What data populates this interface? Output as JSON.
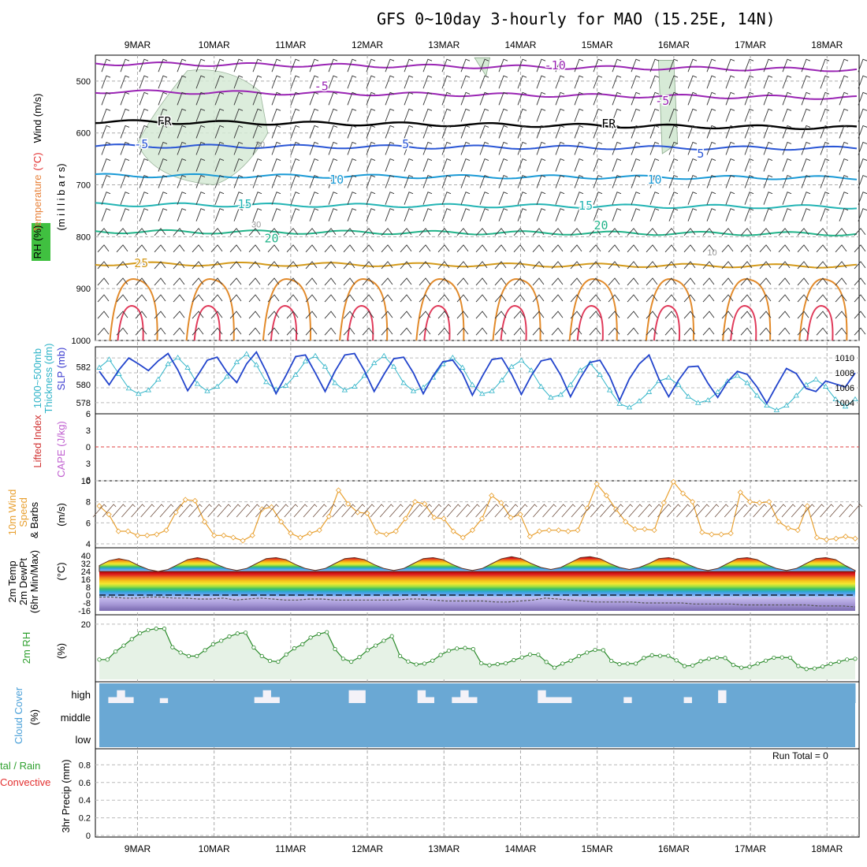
{
  "title": "GFS 0~10day 3-hourly for MAO (15.25E, 14N)",
  "dates": [
    "9MAR",
    "10MAR",
    "11MAR",
    "12MAR",
    "13MAR",
    "14MAR",
    "15MAR",
    "16MAR",
    "17MAR",
    "18MAR"
  ],
  "panels": {
    "upper": {
      "labels": [
        {
          "text": "Wind (m/s)",
          "color": "#000000"
        },
        {
          "text": "Temperature",
          "color": "#e8823a"
        },
        {
          "text": "(°C)",
          "color": "#e33030"
        },
        {
          "text": "RH (%)",
          "color": "#000000"
        },
        {
          "text": "(m i l l i b a r s)",
          "color": "#000000"
        }
      ]
    },
    "thickness": {
      "labels": [
        {
          "text": "1000~500mb",
          "color": "#30b4c8"
        },
        {
          "text": "Thickness (dm)",
          "color": "#30b4c8"
        },
        {
          "text": "SLP (mb)",
          "color": "#3a3ad0"
        }
      ]
    },
    "stability": {
      "labels": [
        {
          "text": "Lifted Index",
          "color": "#d03030"
        },
        {
          "text": "CAPE (J/kg)",
          "color": "#c060d0"
        }
      ]
    },
    "wind10m": {
      "labels": [
        {
          "text": "10m Wind",
          "color": "#e8a030"
        },
        {
          "text": "Speed",
          "color": "#e8a030"
        },
        {
          "text": "& Barbs",
          "color": "#000000"
        },
        {
          "text": "(m/s)",
          "color": "#000000"
        }
      ]
    },
    "temp2m": {
      "labels": [
        {
          "text": "2m Temp",
          "color": "#000000"
        },
        {
          "text": "2m DewPt",
          "color": "#000000"
        },
        {
          "text": "(6hr Min/Max)",
          "color": "#000000"
        },
        {
          "text": "(°C)",
          "color": "#000000"
        }
      ]
    },
    "rh2m": {
      "labels": [
        {
          "text": "2m RH",
          "color": "#2ea02e"
        },
        {
          "text": "(%)",
          "color": "#000000"
        }
      ]
    },
    "cloud": {
      "labels": [
        {
          "text": "Cloud Cover",
          "color": "#4aa0d8"
        },
        {
          "text": "(%)",
          "color": "#000000"
        }
      ]
    },
    "precip": {
      "labels": [
        {
          "text": "tal / Rain",
          "color": "#2ea02e"
        },
        {
          "text": "Convective",
          "color": "#e33030"
        },
        {
          "text": "3hr Precip (mm)",
          "color": "#000000"
        }
      ],
      "run_total": "Run Total = 0"
    }
  },
  "chart_data": [
    {
      "type": "line",
      "name": "upper-air cross section",
      "y_axis": {
        "label": "(m i l l i b a r s)",
        "ticks": [
          500,
          600,
          700,
          800,
          900,
          1000
        ],
        "ylim": [
          1000,
          450
        ],
        "reverse": true
      },
      "isotherm_labels": [
        {
          "text": "-10",
          "color": "#9a24b4",
          "day": 5.45,
          "p": 470
        },
        {
          "text": "-5",
          "color": "#9a24b4",
          "day": 2.4,
          "p": 510
        },
        {
          "text": "-5",
          "color": "#9a24b4",
          "day": 6.85,
          "p": 538
        },
        {
          "text": "FR",
          "color": "#000000",
          "day": 0.35,
          "p": 578
        },
        {
          "text": "FR",
          "color": "#000000",
          "day": 6.15,
          "p": 582
        },
        {
          "text": "-5",
          "color": "#2a56d6",
          "day": 0.05,
          "p": 622
        },
        {
          "text": "5",
          "color": "#2a56d6",
          "day": 3.5,
          "p": 622
        },
        {
          "text": "5",
          "color": "#2a56d6",
          "day": 7.35,
          "p": 640
        },
        {
          "text": "10",
          "color": "#1a9ad6",
          "day": 2.6,
          "p": 690
        },
        {
          "text": "10",
          "color": "#1a9ad6",
          "day": 6.75,
          "p": 690
        },
        {
          "text": "15",
          "color": "#22b4b4",
          "day": 1.4,
          "p": 737
        },
        {
          "text": "15",
          "color": "#22b4b4",
          "day": 5.85,
          "p": 740
        },
        {
          "text": "20",
          "color": "#22b48a",
          "day": 1.75,
          "p": 803
        },
        {
          "text": "20",
          "color": "#22b48a",
          "day": 6.05,
          "p": 778
        },
        {
          "text": "25",
          "color": "#d49a1a",
          "day": 0.05,
          "p": 851
        }
      ],
      "rh_labels": [
        {
          "text": "30",
          "day": 1.6,
          "p": 622
        },
        {
          "text": "30",
          "day": 1.55,
          "p": 776
        },
        {
          "text": "10",
          "day": 7.5,
          "p": 830
        }
      ],
      "isotherms": [
        {
          "name": "-10",
          "color": "#9a24b4",
          "p": 466
        },
        {
          "name": "-5",
          "color": "#9a24b4",
          "p": 520
        },
        {
          "name": "FR",
          "color": "#000000",
          "p": 578
        },
        {
          "name": "-5",
          "color": "#2a56d6",
          "p": 625
        },
        {
          "name": "10",
          "color": "#1a9ad6",
          "p": 682
        },
        {
          "name": "15",
          "color": "#22b4b4",
          "p": 738
        },
        {
          "name": "20",
          "color": "#22b48a",
          "p": 790
        },
        {
          "name": "25",
          "color": "#d49a1a",
          "p": 852
        }
      ]
    },
    {
      "type": "line",
      "name": "thickness and SLP",
      "y_left": {
        "label": "Thickness (dm)",
        "ticks": [
          578,
          580,
          582
        ]
      },
      "y_right": {
        "label": "SLP (mb)",
        "ticks": [
          1004,
          1006,
          1008,
          1010
        ]
      },
      "series": [
        {
          "name": "1000~500mb Thickness (dm)",
          "color": "#30b4c8",
          "axis": "left",
          "marker": "triangle",
          "values": [
            581.9,
            582.8,
            581.2,
            579.6,
            579.0,
            579.4,
            580.6,
            582.3,
            583.0,
            581.9,
            580.1,
            579.3,
            579.8,
            580.9,
            582.5,
            583.4,
            582.2,
            580.3,
            579.5,
            579.9,
            581.1,
            582.6,
            583.2,
            582.0,
            580.2,
            579.4,
            579.8,
            581.0,
            582.4,
            583.2,
            582.0,
            580.2,
            579.3,
            579.7,
            580.8,
            582.3,
            583.0,
            581.9,
            580.0,
            579.0,
            579.3,
            580.5,
            582.0,
            582.7,
            581.6,
            579.8,
            578.6,
            578.9,
            580.0,
            581.6,
            582.4,
            581.1,
            579.4,
            577.9,
            577.5,
            578.2,
            579.2,
            580.4,
            580.8,
            580.0,
            578.7,
            578.0,
            578.3,
            579.2,
            580.4,
            581.0,
            580.2,
            578.8,
            577.7,
            577.2,
            577.7,
            578.8,
            580.0,
            580.6,
            579.8,
            578.4,
            577.6,
            578.4
          ]
        },
        {
          "name": "SLP (mb)",
          "color": "#2244cc",
          "axis": "right",
          "marker": "none",
          "values": [
            1008.2,
            1006.4,
            1008.4,
            1010.0,
            1009.2,
            1008.3,
            1009.6,
            1010.6,
            1008.4,
            1005.6,
            1007.6,
            1009.7,
            1010.1,
            1008.1,
            1006.7,
            1009.2,
            1010.8,
            1008.2,
            1005.2,
            1007.6,
            1010.2,
            1010.4,
            1008.0,
            1005.5,
            1008.2,
            1010.4,
            1010.6,
            1008.3,
            1005.5,
            1007.8,
            1009.9,
            1010.1,
            1008.0,
            1005.2,
            1007.6,
            1009.5,
            1009.7,
            1007.9,
            1005.0,
            1007.5,
            1009.8,
            1010.0,
            1007.8,
            1005.1,
            1007.6,
            1009.6,
            1009.9,
            1007.7,
            1004.8,
            1007.3,
            1009.4,
            1009.7,
            1007.5,
            1004.3,
            1007.2,
            1009.2,
            1010.4,
            1007.2,
            1004.8,
            1007.0,
            1008.8,
            1008.9,
            1006.6,
            1004.7,
            1006.8,
            1008.2,
            1007.8,
            1006.1,
            1003.9,
            1006.3,
            1008.6,
            1007.9,
            1005.9,
            1005.5,
            1006.9,
            1006.5,
            1006.1,
            1008.0
          ]
        }
      ]
    },
    {
      "type": "line",
      "name": "lifted index and CAPE",
      "y_left": {
        "label": "Lifted Index",
        "ticks": [
          -6,
          -3,
          0,
          3,
          6
        ]
      },
      "series": [
        {
          "name": "Lifted Index zero line",
          "color": "#e04040",
          "style": "dashed",
          "values": [
            0
          ]
        }
      ]
    },
    {
      "type": "line",
      "name": "10m wind",
      "y_left": {
        "label": "(m/s)",
        "ticks": [
          4,
          6,
          8,
          10
        ],
        "ylim": [
          4,
          10
        ]
      },
      "series": [
        {
          "name": "10m Wind Speed",
          "color": "#e8a030",
          "marker": "diamond",
          "values": [
            7.6,
            6.8,
            5.2,
            5.2,
            4.8,
            4.8,
            4.9,
            5.3,
            7.0,
            8.2,
            8.1,
            6.1,
            4.8,
            4.8,
            4.6,
            4.3,
            4.8,
            7.3,
            7.5,
            6.1,
            5.0,
            4.6,
            5.0,
            5.3,
            6.6,
            9.1,
            7.8,
            7.0,
            6.9,
            5.1,
            4.9,
            5.2,
            6.4,
            8.0,
            7.8,
            6.5,
            6.4,
            5.2,
            4.6,
            5.3,
            6.4,
            8.6,
            7.9,
            6.5,
            6.8,
            4.7,
            5.2,
            5.3,
            5.3,
            5.2,
            5.3,
            7.4,
            9.7,
            8.6,
            7.3,
            6.1,
            5.4,
            5.4,
            5.3,
            7.9,
            9.9,
            8.8,
            8.0,
            5.1,
            4.9,
            4.9,
            5.0,
            8.9,
            8.0,
            7.9,
            8.0,
            6.1,
            5.5,
            5.3,
            7.6,
            4.6,
            4.4,
            4.5,
            4.7,
            4.5
          ]
        }
      ]
    },
    {
      "type": "area",
      "name": "2m temperature and dewpoint",
      "y_left": {
        "label": "(°C)",
        "ticks": [
          40,
          32,
          24,
          16,
          8,
          0,
          -8,
          -16
        ]
      },
      "series": [
        {
          "name": "2m Temp",
          "values": [
            30,
            35,
            37,
            35,
            30,
            26,
            24,
            26,
            31,
            36,
            38,
            36,
            31,
            27,
            25,
            27,
            32,
            37,
            38,
            36,
            31,
            27,
            25,
            27,
            32,
            37,
            38,
            36,
            31,
            27,
            25,
            27,
            32,
            37,
            38,
            36,
            31,
            27,
            25,
            27,
            32,
            37,
            39,
            37,
            32,
            28,
            26,
            28,
            33,
            38,
            39,
            37,
            32,
            28,
            26,
            28,
            32,
            37,
            38,
            36,
            31,
            27,
            25,
            27,
            32,
            37,
            38,
            36,
            31,
            27,
            25,
            27,
            32,
            37,
            38,
            36,
            30,
            25
          ]
        },
        {
          "name": "2m DewPt",
          "values": [
            -2,
            -2,
            -3,
            -3,
            -2,
            -2,
            -3,
            -3,
            -4,
            -4,
            -3,
            -5,
            -4,
            -3,
            -4,
            -5,
            -5,
            -4,
            -4,
            -5,
            -5,
            -5,
            -5,
            -5,
            -5,
            -4,
            -4,
            -5,
            -6,
            -6,
            -6,
            -6,
            -7,
            -7,
            -6,
            -5,
            -3,
            -4,
            -5,
            -6,
            -7,
            -7,
            -7,
            -7,
            -8,
            -8,
            -8,
            -8,
            -9,
            -9,
            -9,
            -9,
            -10,
            -10,
            -10,
            -10,
            -10,
            -10,
            -11,
            -11,
            -11,
            -12
          ]
        }
      ]
    },
    {
      "type": "area",
      "name": "2m RH",
      "y_left": {
        "label": "(%)",
        "ticks": [
          20
        ]
      },
      "series": [
        {
          "name": "2m RH",
          "color": "#2a8a2a",
          "marker": "circle",
          "values": [
            6.8,
            6.8,
            9.8,
            12.0,
            14.4,
            16.6,
            17.8,
            18.3,
            18.3,
            11.4,
            9.4,
            8.1,
            8.1,
            10.3,
            12.5,
            13.8,
            15.4,
            16.5,
            16.8,
            11.3,
            8.1,
            6.3,
            6.0,
            8.7,
            11.0,
            12.5,
            15.0,
            16.3,
            17.0,
            10.7,
            7.1,
            6.0,
            7.7,
            10.3,
            12.0,
            13.8,
            15.5,
            8.1,
            6.1,
            5.0,
            5.3,
            6.4,
            8.5,
            10.1,
            10.9,
            11.1,
            10.7,
            5.4,
            4.7,
            5.1,
            5.4,
            6.6,
            7.6,
            8.7,
            8.6,
            5.9,
            3.8,
            5.3,
            6.4,
            8.1,
            9.4,
            10.4,
            10.3,
            6.3,
            5.1,
            5.3,
            5.3,
            7.4,
            8.4,
            8.2,
            8.2,
            6.5,
            4.4,
            4.6,
            6.2,
            7.1,
            7.5,
            7.4,
            4.8,
            3.8,
            4.1,
            5.3,
            6.4,
            7.5,
            7.6,
            7.5,
            4.4,
            3.3,
            3.5,
            4.2,
            5.2,
            6.0,
            6.8,
            7.1
          ]
        }
      ]
    },
    {
      "type": "bar",
      "name": "cloud cover",
      "y_left": {
        "label": "(%)",
        "ticks": [
          "high",
          "middle",
          "low"
        ]
      },
      "series": [
        {
          "name": "high cloud cover",
          "color": "#6aa8d4",
          "values": [
            100,
            70,
            35,
            70,
            100,
            100,
            100,
            75,
            100,
            100,
            100,
            100,
            100,
            100,
            100,
            100,
            100,
            100,
            70,
            35,
            70,
            100,
            100,
            100,
            100,
            100,
            100,
            100,
            100,
            35,
            35,
            100,
            100,
            100,
            100,
            100,
            100,
            35,
            70,
            100,
            100,
            70,
            35,
            70,
            100,
            100,
            100,
            100,
            100,
            100,
            100,
            35,
            70,
            70,
            70,
            100,
            100,
            100,
            100,
            100,
            100,
            70,
            100,
            100,
            100,
            100,
            100,
            100,
            70,
            100,
            100,
            100,
            35,
            100,
            100,
            100,
            100,
            100,
            100,
            100,
            100,
            100,
            100,
            100,
            100,
            100,
            100,
            100
          ]
        },
        {
          "name": "middle cloud cover",
          "color": "#6aa8d4",
          "values": [
            100
          ]
        },
        {
          "name": "low cloud cover",
          "color": "#6aa8d4",
          "values": [
            100
          ]
        }
      ]
    },
    {
      "type": "bar",
      "name": "3hr precip",
      "y_left": {
        "label": "3hr Precip (mm)",
        "ticks": [
          0,
          0.2,
          0.4,
          0.6,
          0.8
        ],
        "ylim": [
          0,
          1
        ]
      },
      "series": [
        {
          "name": "Total / Rain",
          "color": "#2ea02e",
          "values": [
            0
          ]
        },
        {
          "name": "Convective",
          "color": "#e33030",
          "values": [
            0
          ]
        }
      ]
    }
  ]
}
